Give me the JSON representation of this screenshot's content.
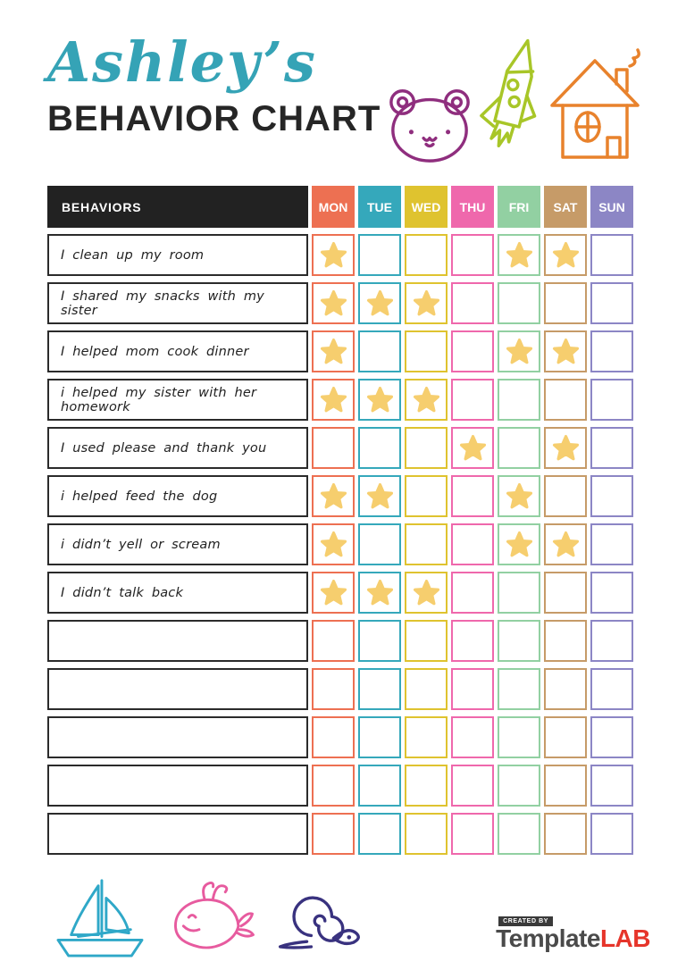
{
  "title": {
    "name": "Ashley’s",
    "subtitle": "BEHAVIOR CHART",
    "name_color": "#35A3B6",
    "subtitle_color": "#262626"
  },
  "top_icons": {
    "bear_color": "#8F2E7E",
    "rocket_color": "#A8C628",
    "house_color": "#E8822C"
  },
  "table": {
    "behaviors_header": "BEHAVIORS",
    "header_bg": "#222222",
    "star_color": "#F6CE6E",
    "label_border_color": "#2B2B2B",
    "days": [
      {
        "label": "MON",
        "color": "#ED7052"
      },
      {
        "label": "TUE",
        "color": "#35A8BB"
      },
      {
        "label": "WED",
        "color": "#DFC32F"
      },
      {
        "label": "THU",
        "color": "#EF68AC"
      },
      {
        "label": "FRI",
        "color": "#92D0A2"
      },
      {
        "label": "SAT",
        "color": "#C69B68"
      },
      {
        "label": "SUN",
        "color": "#8C86C5"
      }
    ],
    "rows": [
      {
        "label": "I clean up my room",
        "stars": [
          1,
          0,
          0,
          0,
          1,
          1,
          0
        ]
      },
      {
        "label": "I shared my snacks with my sister",
        "stars": [
          1,
          1,
          1,
          0,
          0,
          0,
          0
        ]
      },
      {
        "label": "I helped mom cook dinner",
        "stars": [
          1,
          0,
          0,
          0,
          1,
          1,
          0
        ]
      },
      {
        "label": "i helped my sister with her homework",
        "stars": [
          1,
          1,
          1,
          0,
          0,
          0,
          0
        ]
      },
      {
        "label": "I used please and thank you",
        "stars": [
          0,
          0,
          0,
          1,
          0,
          1,
          0
        ]
      },
      {
        "label": "i helped feed the dog",
        "stars": [
          1,
          1,
          0,
          0,
          1,
          0,
          0
        ]
      },
      {
        "label": "i didn’t yell or scream",
        "stars": [
          1,
          0,
          0,
          0,
          1,
          1,
          0
        ]
      },
      {
        "label": "I didn’t talk back",
        "stars": [
          1,
          1,
          1,
          0,
          0,
          0,
          0
        ]
      },
      {
        "label": "",
        "stars": [
          0,
          0,
          0,
          0,
          0,
          0,
          0
        ]
      },
      {
        "label": "",
        "stars": [
          0,
          0,
          0,
          0,
          0,
          0,
          0
        ]
      },
      {
        "label": "",
        "stars": [
          0,
          0,
          0,
          0,
          0,
          0,
          0
        ]
      },
      {
        "label": "",
        "stars": [
          0,
          0,
          0,
          0,
          0,
          0,
          0
        ]
      },
      {
        "label": "",
        "stars": [
          0,
          0,
          0,
          0,
          0,
          0,
          0
        ]
      }
    ]
  },
  "bottom_icons": {
    "sailboat_color": "#2FA8C8",
    "whale_color": "#E75B9F",
    "snail_color": "#39327F"
  },
  "footer": {
    "created_by": "CREATED BY",
    "brand_name": "Template",
    "brand_suffix": "LAB",
    "brand_color": "#4A4A4A",
    "brand_accent": "#E6352B"
  }
}
